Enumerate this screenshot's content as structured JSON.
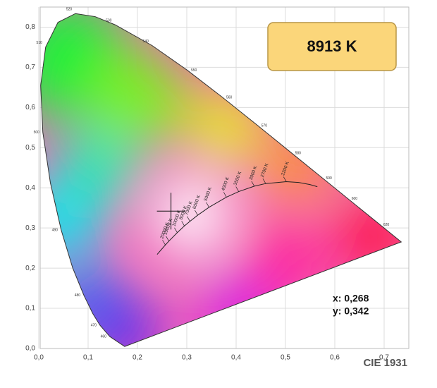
{
  "chart_data": {
    "type": "chromaticity",
    "xlim": [
      0,
      0.75
    ],
    "ylim": [
      0,
      0.85
    ],
    "xticks": [
      {
        "value": 0,
        "label": "0,0"
      },
      {
        "value": 0.1,
        "label": "0,1"
      },
      {
        "value": 0.2,
        "label": "0,2"
      },
      {
        "value": 0.3,
        "label": "0,3"
      },
      {
        "value": 0.4,
        "label": "0,4"
      },
      {
        "value": 0.5,
        "label": "0,5"
      },
      {
        "value": 0.6,
        "label": "0,6"
      },
      {
        "value": 0.7,
        "label": "0,7"
      }
    ],
    "yticks": [
      {
        "value": 0,
        "label": "0,0"
      },
      {
        "value": 0.1,
        "label": "0,1"
      },
      {
        "value": 0.2,
        "label": "0,2"
      },
      {
        "value": 0.3,
        "label": "0,3"
      },
      {
        "value": 0.4,
        "label": "0,4"
      },
      {
        "value": 0.5,
        "label": "0,5"
      },
      {
        "value": 0.6,
        "label": "0,6"
      },
      {
        "value": 0.7,
        "label": "0,7"
      },
      {
        "value": 0.8,
        "label": "0,8"
      }
    ],
    "grid": true,
    "spectral_locus": {
      "x": [
        0.1741,
        0.144,
        0.1241,
        0.1096,
        0.0913,
        0.0687,
        0.0454,
        0.0235,
        0.0082,
        0.0039,
        0.0139,
        0.0389,
        0.0743,
        0.1142,
        0.1547,
        0.2296,
        0.3016,
        0.3731,
        0.4441,
        0.5125,
        0.5752,
        0.627,
        0.6915,
        0.7347
      ],
      "y": [
        0.005,
        0.0297,
        0.0578,
        0.0868,
        0.1327,
        0.2007,
        0.295,
        0.4127,
        0.5384,
        0.6548,
        0.7502,
        0.812,
        0.8338,
        0.8262,
        0.8059,
        0.7543,
        0.6923,
        0.6245,
        0.5547,
        0.4866,
        0.4242,
        0.3725,
        0.3083,
        0.2653
      ],
      "labels": [
        null,
        "460",
        "470",
        null,
        "480",
        null,
        "490",
        null,
        "500",
        null,
        "510",
        null,
        "520",
        null,
        "530",
        "540",
        "550",
        "560",
        "570",
        "580",
        "590",
        "600",
        "620",
        null
      ]
    },
    "planckian_locus": {
      "x": [
        0.2399,
        0.2565,
        0.2637,
        0.2807,
        0.2952,
        0.3064,
        0.3221,
        0.3451,
        0.3805,
        0.4053,
        0.4369,
        0.4599,
        0.5018,
        0.5267,
        0.5496,
        0.5646
      ],
      "y": [
        0.2342,
        0.2577,
        0.2673,
        0.2884,
        0.3051,
        0.3166,
        0.3318,
        0.3516,
        0.3768,
        0.3907,
        0.4041,
        0.4106,
        0.4153,
        0.4133,
        0.4081,
        0.4029
      ],
      "labels": [
        null,
        "20000 K",
        "15000 K",
        "10000 K",
        "8000 K",
        "7000 K",
        "6000 K",
        "5000 K",
        "4000 K",
        "3500 K",
        "3000 K",
        "2700 K",
        "2200 K",
        null,
        null,
        null
      ]
    },
    "marker": {
      "x": 0.268,
      "y": 0.342,
      "x_label": "x: 0,268",
      "y_label": "y: 0,342"
    },
    "cct": "8913 K",
    "caption": "CIE 1931"
  }
}
